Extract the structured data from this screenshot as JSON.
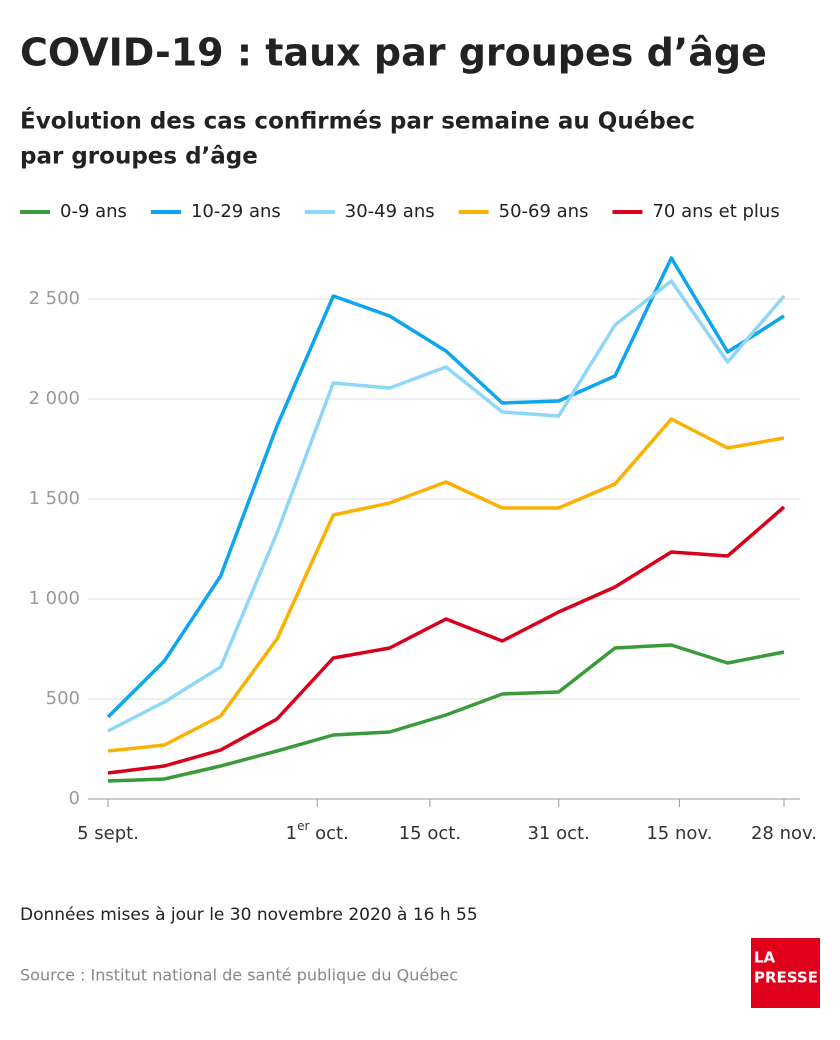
{
  "chart_data": {
    "type": "line",
    "title": "COVID-19 : taux par groupes d’âge",
    "subtitle": [
      "Évolution des cas confirmés par semaine au Québec",
      "par groupes d’âge"
    ],
    "x": [
      "09-05",
      "09-12",
      "09-19",
      "09-26",
      "10-03",
      "10-10",
      "10-17",
      "10-24",
      "10-31",
      "11-07",
      "11-14",
      "11-21",
      "11-28"
    ],
    "xlim": [
      "09-05",
      "11-28"
    ],
    "xticks": [
      {
        "value": "09-05",
        "label": "5 sept."
      },
      {
        "value": "10-01",
        "label": "1er oct."
      },
      {
        "value": "10-15",
        "label": "15 oct."
      },
      {
        "value": "10-31",
        "label": "31 oct."
      },
      {
        "value": "11-15",
        "label": "15 nov."
      },
      {
        "value": "11-28",
        "label": "28 nov."
      }
    ],
    "ylim": [
      0,
      2750
    ],
    "yticks": [
      0,
      500,
      {
        "value": 1000,
        "label": "1 000"
      },
      {
        "value": 1500,
        "label": "1 500"
      },
      {
        "value": 2000,
        "label": "2 000"
      },
      {
        "value": 2500,
        "label": "2 500"
      }
    ],
    "grid": true,
    "series": [
      {
        "name": "0-9 ans",
        "color": "#3a9b3a",
        "values": [
          90,
          100,
          165,
          240,
          320,
          335,
          420,
          525,
          535,
          755,
          770,
          680,
          735
        ]
      },
      {
        "name": "10-29 ans",
        "color": "#0ea5ef",
        "values": [
          410,
          690,
          1115,
          1865,
          2515,
          2415,
          2240,
          1980,
          1990,
          2115,
          2705,
          2235,
          2415
        ]
      },
      {
        "name": "30-49 ans",
        "color": "#8fd6f7",
        "values": [
          340,
          485,
          660,
          1330,
          2080,
          2055,
          2160,
          1935,
          1915,
          2370,
          2590,
          2185,
          2515
        ]
      },
      {
        "name": "50-69 ans",
        "color": "#fbb101",
        "values": [
          240,
          270,
          415,
          800,
          1420,
          1480,
          1585,
          1455,
          1455,
          1575,
          1900,
          1755,
          1805
        ]
      },
      {
        "name": "70 ans et plus",
        "color": "#d9001b",
        "values": [
          130,
          165,
          245,
          400,
          705,
          755,
          900,
          790,
          935,
          1060,
          1235,
          1215,
          1460
        ]
      }
    ],
    "note": "Données mises à jour le 30 novembre 2020 à 16 h 55",
    "source": "Source : Institut national de santé publique du Québec",
    "logo": [
      "LA",
      "PRESSE"
    ]
  }
}
